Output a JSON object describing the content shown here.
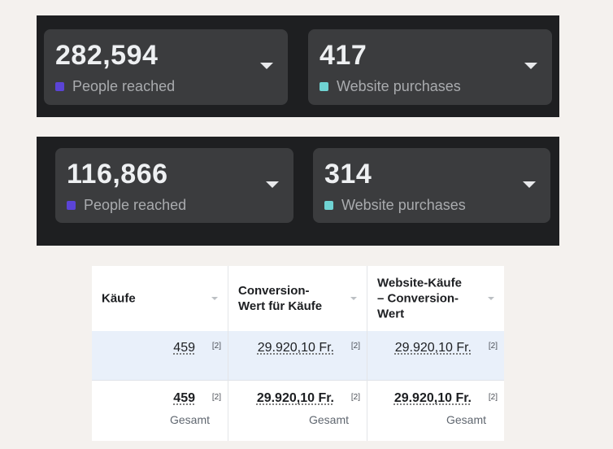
{
  "colors": {
    "people_reached": "#5b44d6",
    "website_purchases": "#6fd3d3"
  },
  "panels": [
    {
      "cards": [
        {
          "value": "282,594",
          "label": "People reached",
          "dot_color": "#5b44d6",
          "icon": "chevron-down-icon"
        },
        {
          "value": "417",
          "label": "Website purchases",
          "dot_color": "#6fd3d3",
          "icon": "chevron-down-icon"
        }
      ]
    },
    {
      "cards": [
        {
          "value": "116,866",
          "label": "People reached",
          "dot_color": "#5b44d6",
          "icon": "chevron-down-icon"
        },
        {
          "value": "314",
          "label": "Website purchases",
          "dot_color": "#6fd3d3",
          "icon": "chevron-down-icon"
        }
      ]
    }
  ],
  "table": {
    "columns": [
      "Käufe",
      "Conversion-\nWert für Käufe",
      "Website-Käufe\n– Conversion-\nWert"
    ],
    "rows": [
      {
        "cells": [
          "459",
          "29.920,10 Fr.",
          "29.920,10 Fr."
        ],
        "footnote": "[2]"
      },
      {
        "cells": [
          "459",
          "29.920,10 Fr.",
          "29.920,10 Fr."
        ],
        "footnote": "[2]",
        "sublabel": "Gesamt"
      }
    ]
  }
}
